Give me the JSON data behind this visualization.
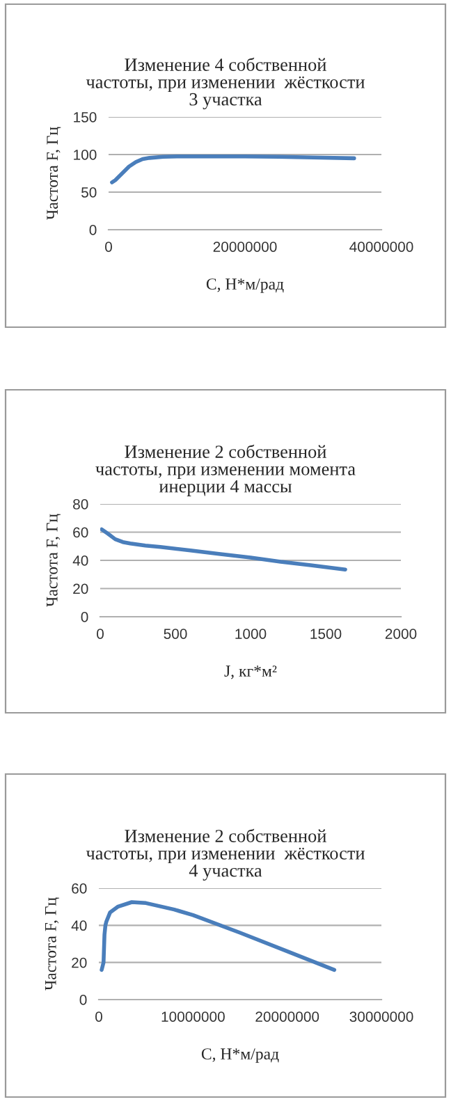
{
  "chart_data": [
    {
      "type": "line",
      "title": "Изменение 4 собственной\nчастоты, при изменении  жёсткости\n3 участка",
      "xlabel": "C, Н*м/рад",
      "ylabel": "Частота F, Гц",
      "series": [
        {
          "color": "#4a7ebb",
          "x": [
            500000,
            1000000,
            2000000,
            3000000,
            4000000,
            5000000,
            6000000,
            8000000,
            10000000,
            15000000,
            20000000,
            25000000,
            30000000,
            36000000
          ],
          "values": [
            63,
            66,
            75,
            84,
            90,
            94,
            95.5,
            97,
            97.5,
            97.5,
            97.5,
            97,
            96,
            95
          ]
        }
      ],
      "xlim": [
        0,
        40000000
      ],
      "xticks": [
        0,
        20000000,
        40000000
      ],
      "ylim": [
        0,
        150
      ],
      "yticks": [
        0,
        50,
        100,
        150
      ],
      "grid": "y"
    },
    {
      "type": "line",
      "title": "Изменение 2 собственной\nчастоты, при изменении момента\nинерции 4 массы",
      "xlabel": "J, кг*м²",
      "ylabel": "Частота F, Гц",
      "series": [
        {
          "color": "#4a7ebb",
          "x": [
            10,
            50,
            100,
            150,
            200,
            300,
            400,
            600,
            800,
            1000,
            1200,
            1400,
            1630
          ],
          "values": [
            62,
            59,
            55,
            53,
            52,
            50.5,
            49.5,
            47,
            44.5,
            42,
            39,
            36.5,
            33.5
          ]
        }
      ],
      "xlim": [
        0,
        2000
      ],
      "xticks": [
        0,
        500,
        1000,
        1500,
        2000
      ],
      "ylim": [
        0,
        80
      ],
      "yticks": [
        0,
        20,
        40,
        60,
        80
      ],
      "grid": "y"
    },
    {
      "type": "line",
      "title": "Изменение 2 собственной\nчастоты, при изменении  жёсткости\n4 участка",
      "xlabel": "C, Н*м/рад",
      "ylabel": "Частота F, Гц",
      "series": [
        {
          "color": "#4a7ebb",
          "x": [
            300000,
            500000,
            600000,
            700000,
            800000,
            1200000,
            2000000,
            3500000,
            5000000,
            8000000,
            10000000,
            15000000,
            20000000,
            25000000
          ],
          "values": [
            16,
            20,
            35,
            40,
            42,
            47,
            50,
            52.5,
            52,
            48.5,
            45.5,
            36,
            26,
            16
          ]
        }
      ],
      "xlim": [
        0,
        30000000
      ],
      "xticks": [
        0,
        10000000,
        20000000,
        30000000
      ],
      "ylim": [
        0,
        60
      ],
      "yticks": [
        0,
        20,
        40,
        60
      ],
      "grid": "y"
    }
  ]
}
